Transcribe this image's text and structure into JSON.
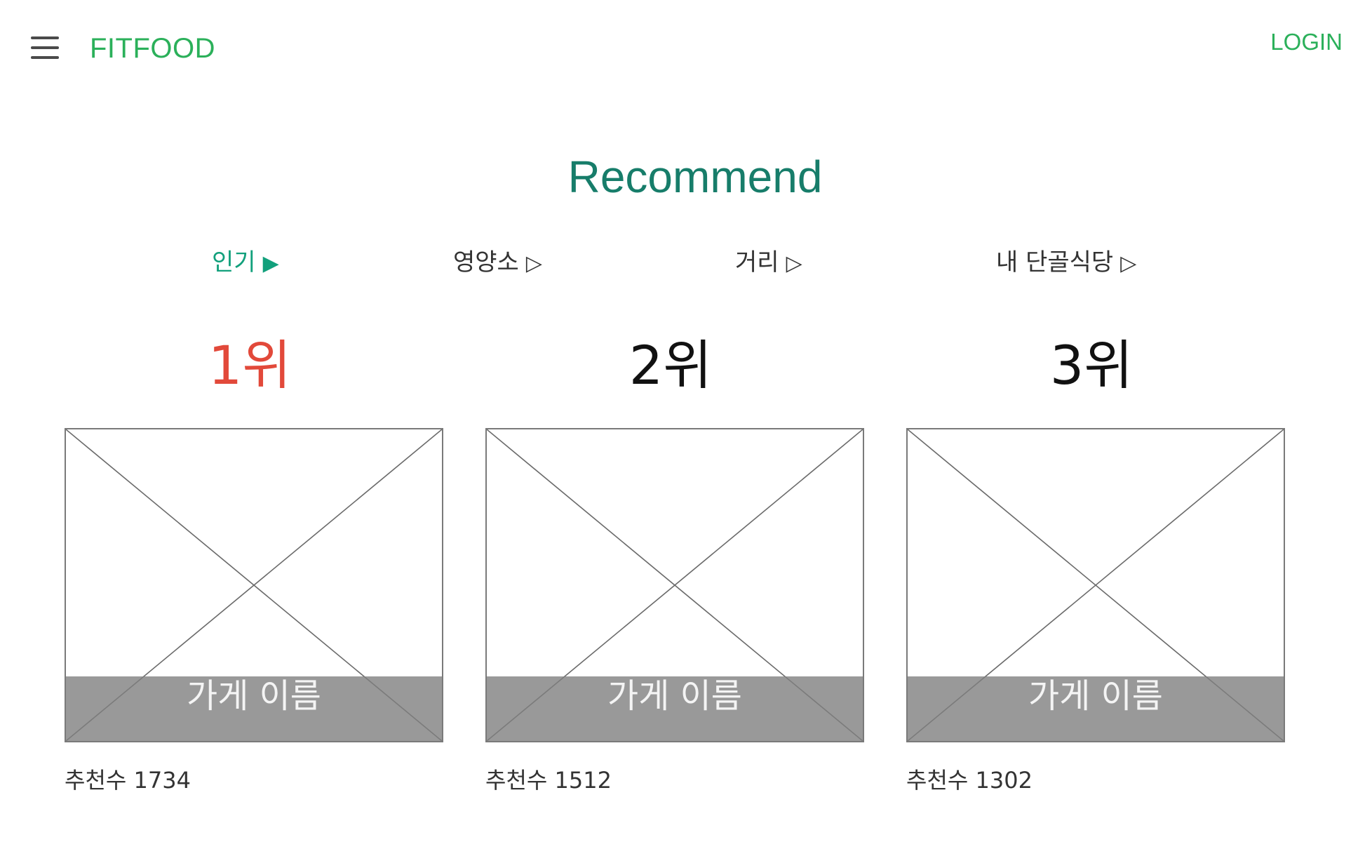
{
  "header": {
    "brand": "FITFOOD",
    "login_label": "LOGIN"
  },
  "icons": {
    "menu": "hamburger-menu-icon",
    "placeholder": "image-placeholder-icon"
  },
  "colors": {
    "brand_green": "#2bb05a",
    "title_teal": "#177d6a",
    "active_tab": "#12a07c",
    "first_rank_red": "#e2493a"
  },
  "main": {
    "title": "Recommend",
    "tabs": [
      {
        "label": "인기",
        "arrow": "▶",
        "active": true
      },
      {
        "label": "영양소",
        "arrow": "▷",
        "active": false
      },
      {
        "label": "거리",
        "arrow": "▷",
        "active": false
      },
      {
        "label": "내 단골식당",
        "arrow": "▷",
        "active": false
      }
    ],
    "ranking": [
      {
        "rank": "1위",
        "store_name": "가게 이름",
        "count_label": "추천수 1734"
      },
      {
        "rank": "2위",
        "store_name": "가게 이름",
        "count_label": "추천수 1512"
      },
      {
        "rank": "3위",
        "store_name": "가게 이름",
        "count_label": "추천수 1302"
      }
    ]
  }
}
